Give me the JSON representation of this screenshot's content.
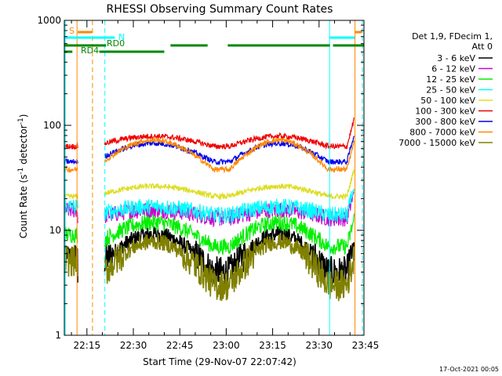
{
  "chart_data": {
    "type": "line",
    "title": "RHESSI Observing Summary Count Rates",
    "xlabel": "Start Time (29-Nov-07 22:07:42)",
    "ylabel": "Count Rate (s⁻¹ detector⁻¹)",
    "ylabel_parts": [
      "Count Rate (s",
      "-1",
      " detector",
      "-1",
      ")"
    ],
    "yscale": "log",
    "ylim": [
      1,
      1000
    ],
    "y_ticks": [
      {
        "value": 1,
        "label": "1"
      },
      {
        "value": 10,
        "label": "10"
      },
      {
        "value": 100,
        "label": "100"
      },
      {
        "value": 1000,
        "label": "1000"
      }
    ],
    "xlim_minutes": [
      7.7,
      104.5
    ],
    "x_ticks": [
      {
        "minute": 15,
        "label": "22:15"
      },
      {
        "minute": 30,
        "label": "22:30"
      },
      {
        "minute": 45,
        "label": "22:45"
      },
      {
        "minute": 60,
        "label": "23:00"
      },
      {
        "minute": 75,
        "label": "23:15"
      },
      {
        "minute": 90,
        "label": "23:30"
      },
      {
        "minute": 105,
        "label": "23:45"
      }
    ],
    "legend_header": [
      "Det 1,9, FDecim 1,",
      "Att 0"
    ],
    "series": [
      {
        "name": "3 - 6 keV",
        "color": "#000000",
        "base": 4,
        "amp": 2.3,
        "gap": 1.5
      },
      {
        "name": "6 - 12 keV",
        "color": "#cc00cc",
        "base": 13,
        "amp": 1.2,
        "gap": 1.2
      },
      {
        "name": "12 - 25 keV",
        "color": "#00ee00",
        "base": 7,
        "amp": 1.7,
        "gap": 1.3
      },
      {
        "name": "25 - 50 keV",
        "color": "#00ffff",
        "base": 14,
        "amp": 1.2,
        "gap": 1.2
      },
      {
        "name": "50 - 100 keV",
        "color": "#dddd22",
        "base": 21,
        "amp": 1.25,
        "gap": 1.0
      },
      {
        "name": "100 - 300 keV",
        "color": "#ee0000",
        "base": 63,
        "amp": 1.25,
        "gap": 1.0
      },
      {
        "name": "300 - 800 keV",
        "color": "#0000ee",
        "base": 45,
        "amp": 1.5,
        "gap": 1.0
      },
      {
        "name": "800 - 7000 keV",
        "color": "#ff8800",
        "base": 38,
        "amp": 1.9,
        "gap": 1.0
      },
      {
        "name": "7000 - 15000 keV",
        "color": "#808000",
        "base": 3,
        "amp": 2.6,
        "gap": 1.7
      }
    ],
    "bars": [
      {
        "label": "S",
        "color": "#ff8800",
        "segments": [
          [
            12.0,
            16.7
          ],
          [
            101.5,
            103.8
          ]
        ]
      },
      {
        "label": "N",
        "color": "#00ffff",
        "segments": [
          [
            7.7,
            24.0
          ],
          [
            93.5,
            101.5
          ]
        ]
      },
      {
        "label": "RD0",
        "color": "#008800",
        "segments": [
          [
            7.7,
            21.2
          ],
          [
            42.0,
            54.0
          ],
          [
            60.5,
            93.5
          ],
          [
            94.5,
            104.5
          ]
        ]
      },
      {
        "label": "RD4",
        "color": "#008800",
        "segments": [
          [
            7.7,
            10.3
          ],
          [
            19.0,
            40.0
          ]
        ]
      }
    ],
    "vertical_lines": [
      {
        "minute": 11.8,
        "color": "#ff8800",
        "style": "solid"
      },
      {
        "minute": 16.8,
        "color": "#ff8800",
        "style": "dashed"
      },
      {
        "minute": 20.8,
        "color": "#00ffff",
        "style": "dashed"
      },
      {
        "minute": 8.0,
        "color": "#00ffff",
        "style": "solid"
      },
      {
        "minute": 93.4,
        "color": "#00ffff",
        "style": "solid"
      },
      {
        "minute": 101.6,
        "color": "#ff8800",
        "style": "solid"
      },
      {
        "minute": 104.0,
        "color": "#00ffff",
        "style": "dashed"
      }
    ]
  },
  "timestamp": "17-Oct-2021 00:05"
}
